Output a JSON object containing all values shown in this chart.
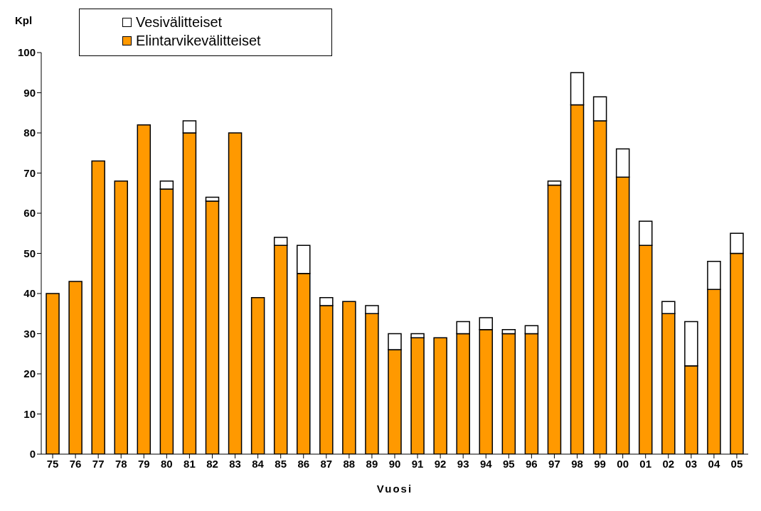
{
  "chart_data": {
    "type": "bar",
    "stacked": true,
    "xlabel": "Vuosi",
    "ylabel": "Kpl",
    "categories": [
      "75",
      "76",
      "77",
      "78",
      "79",
      "80",
      "81",
      "82",
      "83",
      "84",
      "85",
      "86",
      "87",
      "88",
      "89",
      "90",
      "91",
      "92",
      "93",
      "94",
      "95",
      "96",
      "97",
      "98",
      "99",
      "00",
      "01",
      "02",
      "03",
      "04",
      "05"
    ],
    "series": [
      {
        "name": "Elintarvikevälitteiset",
        "color": "#ff9900",
        "values": [
          40,
          43,
          73,
          68,
          82,
          66,
          80,
          63,
          80,
          39,
          52,
          45,
          37,
          38,
          35,
          26,
          29,
          29,
          30,
          31,
          30,
          30,
          67,
          87,
          83,
          69,
          52,
          35,
          22,
          41,
          50
        ]
      },
      {
        "name": "Vesivälitteiset",
        "color": "#ffffff",
        "values": [
          0,
          0,
          0,
          0,
          0,
          2,
          3,
          1,
          0,
          0,
          2,
          7,
          2,
          0,
          2,
          4,
          1,
          0,
          3,
          3,
          1,
          2,
          1,
          8,
          6,
          7,
          6,
          3,
          11,
          7,
          5
        ]
      }
    ],
    "ylim": [
      0,
      100
    ],
    "yticks": [
      0,
      10,
      20,
      30,
      40,
      50,
      60,
      70,
      80,
      90,
      100
    ],
    "grid": false,
    "legend": "top left"
  }
}
